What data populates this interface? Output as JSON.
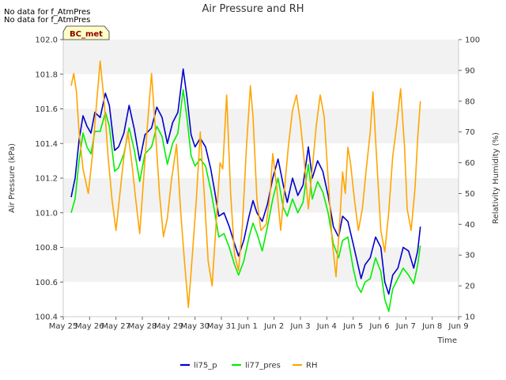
{
  "chart_data": {
    "type": "line",
    "title": "Air Pressure and RH",
    "xlabel": "Time",
    "ylabel_left": "Air Pressure (kPa)",
    "ylabel_right": "Relativity Humidity (%)",
    "notes": [
      "No data for f_AtmPres",
      "No data for f_AtmPres"
    ],
    "badge": "BC_met",
    "x_ticks": [
      "May 25",
      "May 26",
      "May 27",
      "May 28",
      "May 29",
      "May 30",
      "May 31",
      "Jun 1",
      "Jun 2",
      "Jun 3",
      "Jun 4",
      "Jun 5",
      "Jun 6",
      "Jun 7",
      "Jun 8",
      "Jun 9"
    ],
    "x_range_days": [
      0,
      15
    ],
    "ylim_left": [
      100.4,
      102.0
    ],
    "ylim_right": [
      10,
      100
    ],
    "yticks_left": [
      "100.4",
      "100.6",
      "100.8",
      "101.0",
      "101.2",
      "101.4",
      "101.6",
      "101.8",
      "102.0"
    ],
    "yticks_right": [
      "10",
      "20",
      "30",
      "40",
      "50",
      "60",
      "70",
      "80",
      "90",
      "100"
    ],
    "grid": "horizontal bands",
    "legend_position": "bottom-center",
    "colors": {
      "li75_p": "#0000cc",
      "li77_pres": "#00ee00",
      "RH": "#ffa500",
      "band": "#f2f2f2"
    },
    "series": [
      {
        "name": "li75_p",
        "axis": "left",
        "points": [
          [
            0.3,
            101.09
          ],
          [
            0.45,
            101.2
          ],
          [
            0.6,
            101.42
          ],
          [
            0.75,
            101.56
          ],
          [
            0.9,
            101.5
          ],
          [
            1.05,
            101.46
          ],
          [
            1.2,
            101.58
          ],
          [
            1.4,
            101.55
          ],
          [
            1.6,
            101.69
          ],
          [
            1.75,
            101.62
          ],
          [
            1.95,
            101.36
          ],
          [
            2.1,
            101.38
          ],
          [
            2.3,
            101.46
          ],
          [
            2.5,
            101.62
          ],
          [
            2.7,
            101.48
          ],
          [
            2.9,
            101.3
          ],
          [
            3.1,
            101.45
          ],
          [
            3.35,
            101.49
          ],
          [
            3.55,
            101.61
          ],
          [
            3.75,
            101.55
          ],
          [
            3.95,
            101.4
          ],
          [
            4.15,
            101.52
          ],
          [
            4.35,
            101.58
          ],
          [
            4.55,
            101.83
          ],
          [
            4.7,
            101.66
          ],
          [
            4.85,
            101.45
          ],
          [
            5.0,
            101.38
          ],
          [
            5.2,
            101.43
          ],
          [
            5.4,
            101.38
          ],
          [
            5.6,
            101.25
          ],
          [
            5.75,
            101.12
          ],
          [
            5.9,
            100.98
          ],
          [
            6.1,
            101.0
          ],
          [
            6.3,
            100.92
          ],
          [
            6.5,
            100.82
          ],
          [
            6.65,
            100.75
          ],
          [
            6.85,
            100.84
          ],
          [
            7.05,
            100.98
          ],
          [
            7.2,
            101.07
          ],
          [
            7.35,
            101.0
          ],
          [
            7.55,
            100.95
          ],
          [
            7.75,
            101.05
          ],
          [
            7.95,
            101.2
          ],
          [
            8.15,
            101.31
          ],
          [
            8.35,
            101.16
          ],
          [
            8.5,
            101.06
          ],
          [
            8.7,
            101.2
          ],
          [
            8.9,
            101.1
          ],
          [
            9.1,
            101.16
          ],
          [
            9.3,
            101.38
          ],
          [
            9.45,
            101.2
          ],
          [
            9.65,
            101.3
          ],
          [
            9.85,
            101.24
          ],
          [
            10.05,
            101.1
          ],
          [
            10.25,
            100.92
          ],
          [
            10.45,
            100.86
          ],
          [
            10.6,
            100.98
          ],
          [
            10.8,
            100.95
          ],
          [
            11.0,
            100.82
          ],
          [
            11.15,
            100.72
          ],
          [
            11.3,
            100.62
          ],
          [
            11.45,
            100.7
          ],
          [
            11.65,
            100.74
          ],
          [
            11.85,
            100.86
          ],
          [
            12.05,
            100.8
          ],
          [
            12.2,
            100.6
          ],
          [
            12.35,
            100.53
          ],
          [
            12.5,
            100.64
          ],
          [
            12.7,
            100.68
          ],
          [
            12.9,
            100.8
          ],
          [
            13.1,
            100.78
          ],
          [
            13.3,
            100.68
          ],
          [
            13.45,
            100.78
          ],
          [
            13.55,
            100.92
          ]
        ]
      },
      {
        "name": "li77_pres",
        "axis": "left",
        "points": [
          [
            0.3,
            101.0
          ],
          [
            0.45,
            101.08
          ],
          [
            0.6,
            101.3
          ],
          [
            0.75,
            101.46
          ],
          [
            0.9,
            101.38
          ],
          [
            1.05,
            101.34
          ],
          [
            1.2,
            101.47
          ],
          [
            1.4,
            101.47
          ],
          [
            1.6,
            101.58
          ],
          [
            1.75,
            101.5
          ],
          [
            1.95,
            101.24
          ],
          [
            2.1,
            101.26
          ],
          [
            2.3,
            101.34
          ],
          [
            2.5,
            101.49
          ],
          [
            2.7,
            101.36
          ],
          [
            2.9,
            101.18
          ],
          [
            3.1,
            101.34
          ],
          [
            3.35,
            101.38
          ],
          [
            3.55,
            101.5
          ],
          [
            3.75,
            101.44
          ],
          [
            3.95,
            101.28
          ],
          [
            4.15,
            101.4
          ],
          [
            4.35,
            101.46
          ],
          [
            4.55,
            101.71
          ],
          [
            4.7,
            101.54
          ],
          [
            4.85,
            101.33
          ],
          [
            5.0,
            101.27
          ],
          [
            5.2,
            101.31
          ],
          [
            5.4,
            101.27
          ],
          [
            5.6,
            101.13
          ],
          [
            5.75,
            101.0
          ],
          [
            5.9,
            100.86
          ],
          [
            6.1,
            100.88
          ],
          [
            6.3,
            100.8
          ],
          [
            6.5,
            100.7
          ],
          [
            6.65,
            100.64
          ],
          [
            6.85,
            100.72
          ],
          [
            7.05,
            100.86
          ],
          [
            7.2,
            100.94
          ],
          [
            7.35,
            100.88
          ],
          [
            7.55,
            100.78
          ],
          [
            7.75,
            100.92
          ],
          [
            7.95,
            101.08
          ],
          [
            8.15,
            101.2
          ],
          [
            8.35,
            101.03
          ],
          [
            8.5,
            100.98
          ],
          [
            8.7,
            101.08
          ],
          [
            8.9,
            101.0
          ],
          [
            9.1,
            101.06
          ],
          [
            9.3,
            101.28
          ],
          [
            9.45,
            101.08
          ],
          [
            9.65,
            101.18
          ],
          [
            9.85,
            101.12
          ],
          [
            10.05,
            101.0
          ],
          [
            10.25,
            100.82
          ],
          [
            10.45,
            100.74
          ],
          [
            10.6,
            100.84
          ],
          [
            10.8,
            100.86
          ],
          [
            11.0,
            100.68
          ],
          [
            11.15,
            100.58
          ],
          [
            11.3,
            100.54
          ],
          [
            11.45,
            100.6
          ],
          [
            11.65,
            100.62
          ],
          [
            11.85,
            100.74
          ],
          [
            12.05,
            100.66
          ],
          [
            12.2,
            100.5
          ],
          [
            12.35,
            100.43
          ],
          [
            12.5,
            100.56
          ],
          [
            12.7,
            100.62
          ],
          [
            12.9,
            100.68
          ],
          [
            13.1,
            100.64
          ],
          [
            13.3,
            100.59
          ],
          [
            13.45,
            100.7
          ],
          [
            13.55,
            100.81
          ]
        ]
      },
      {
        "name": "RH",
        "axis": "right",
        "points": [
          [
            0.3,
            85
          ],
          [
            0.4,
            89
          ],
          [
            0.5,
            83
          ],
          [
            0.6,
            70
          ],
          [
            0.75,
            58
          ],
          [
            0.95,
            50
          ],
          [
            1.1,
            62
          ],
          [
            1.25,
            78
          ],
          [
            1.4,
            93
          ],
          [
            1.55,
            80
          ],
          [
            1.7,
            62
          ],
          [
            1.85,
            48
          ],
          [
            2.0,
            38
          ],
          [
            2.15,
            50
          ],
          [
            2.3,
            62
          ],
          [
            2.45,
            70
          ],
          [
            2.6,
            60
          ],
          [
            2.75,
            48
          ],
          [
            2.9,
            37
          ],
          [
            3.05,
            55
          ],
          [
            3.2,
            73
          ],
          [
            3.35,
            89
          ],
          [
            3.5,
            70
          ],
          [
            3.65,
            50
          ],
          [
            3.8,
            36
          ],
          [
            3.95,
            42
          ],
          [
            4.1,
            54
          ],
          [
            4.3,
            66
          ],
          [
            4.45,
            45
          ],
          [
            4.6,
            28
          ],
          [
            4.75,
            13
          ],
          [
            4.9,
            30
          ],
          [
            5.05,
            48
          ],
          [
            5.2,
            70
          ],
          [
            5.35,
            50
          ],
          [
            5.5,
            28
          ],
          [
            5.65,
            20
          ],
          [
            5.8,
            40
          ],
          [
            5.95,
            60
          ],
          [
            6.05,
            58
          ],
          [
            6.2,
            82
          ],
          [
            6.35,
            50
          ],
          [
            6.5,
            30
          ],
          [
            6.65,
            25
          ],
          [
            6.8,
            40
          ],
          [
            6.95,
            65
          ],
          [
            7.1,
            85
          ],
          [
            7.2,
            75
          ],
          [
            7.35,
            48
          ],
          [
            7.5,
            38
          ],
          [
            7.7,
            40
          ],
          [
            7.85,
            50
          ],
          [
            7.95,
            63
          ],
          [
            8.1,
            52
          ],
          [
            8.25,
            38
          ],
          [
            8.4,
            52
          ],
          [
            8.55,
            66
          ],
          [
            8.7,
            77
          ],
          [
            8.85,
            82
          ],
          [
            9.0,
            73
          ],
          [
            9.15,
            60
          ],
          [
            9.3,
            45
          ],
          [
            9.45,
            58
          ],
          [
            9.6,
            72
          ],
          [
            9.75,
            82
          ],
          [
            9.9,
            75
          ],
          [
            10.05,
            55
          ],
          [
            10.2,
            35
          ],
          [
            10.35,
            23
          ],
          [
            10.5,
            42
          ],
          [
            10.6,
            57
          ],
          [
            10.7,
            50
          ],
          [
            10.8,
            65
          ],
          [
            10.9,
            60
          ],
          [
            11.05,
            48
          ],
          [
            11.2,
            38
          ],
          [
            11.35,
            45
          ],
          [
            11.5,
            58
          ],
          [
            11.65,
            70
          ],
          [
            11.75,
            83
          ],
          [
            11.9,
            60
          ],
          [
            12.05,
            38
          ],
          [
            12.2,
            31
          ],
          [
            12.35,
            44
          ],
          [
            12.5,
            62
          ],
          [
            12.65,
            72
          ],
          [
            12.8,
            84
          ],
          [
            12.95,
            65
          ],
          [
            13.05,
            45
          ],
          [
            13.2,
            38
          ],
          [
            13.35,
            52
          ],
          [
            13.45,
            68
          ],
          [
            13.55,
            80
          ]
        ]
      }
    ]
  }
}
